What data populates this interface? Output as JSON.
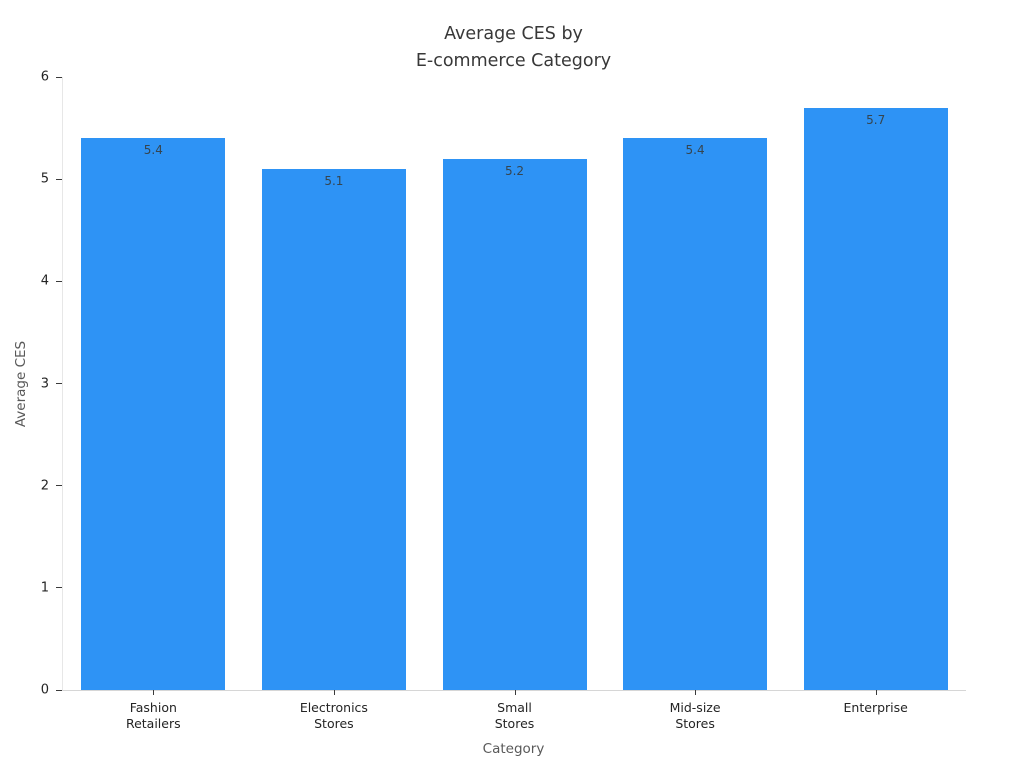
{
  "chart_data": {
    "type": "bar",
    "title": "Average CES by\nE-commerce Category",
    "title_lines": [
      "Average CES by",
      "E-commerce Category"
    ],
    "categories": [
      "Fashion\nRetailers",
      "Electronics\nStores",
      "Small\nStores",
      "Mid-size\nStores",
      "Enterprise"
    ],
    "values": [
      5.4,
      5.1,
      5.2,
      5.4,
      5.7
    ],
    "bar_labels": [
      "5.4",
      "5.1",
      "5.2",
      "5.4",
      "5.7"
    ],
    "xlabel": "Category",
    "ylabel": "Average CES",
    "ylim": [
      0,
      6
    ],
    "yticks": [
      0,
      1,
      2,
      3,
      4,
      5,
      6
    ],
    "bar_color": "#2E93F5",
    "value_label_color": "#36454f",
    "grid": false,
    "legend_position": "none",
    "background_color": "#ffffff"
  }
}
